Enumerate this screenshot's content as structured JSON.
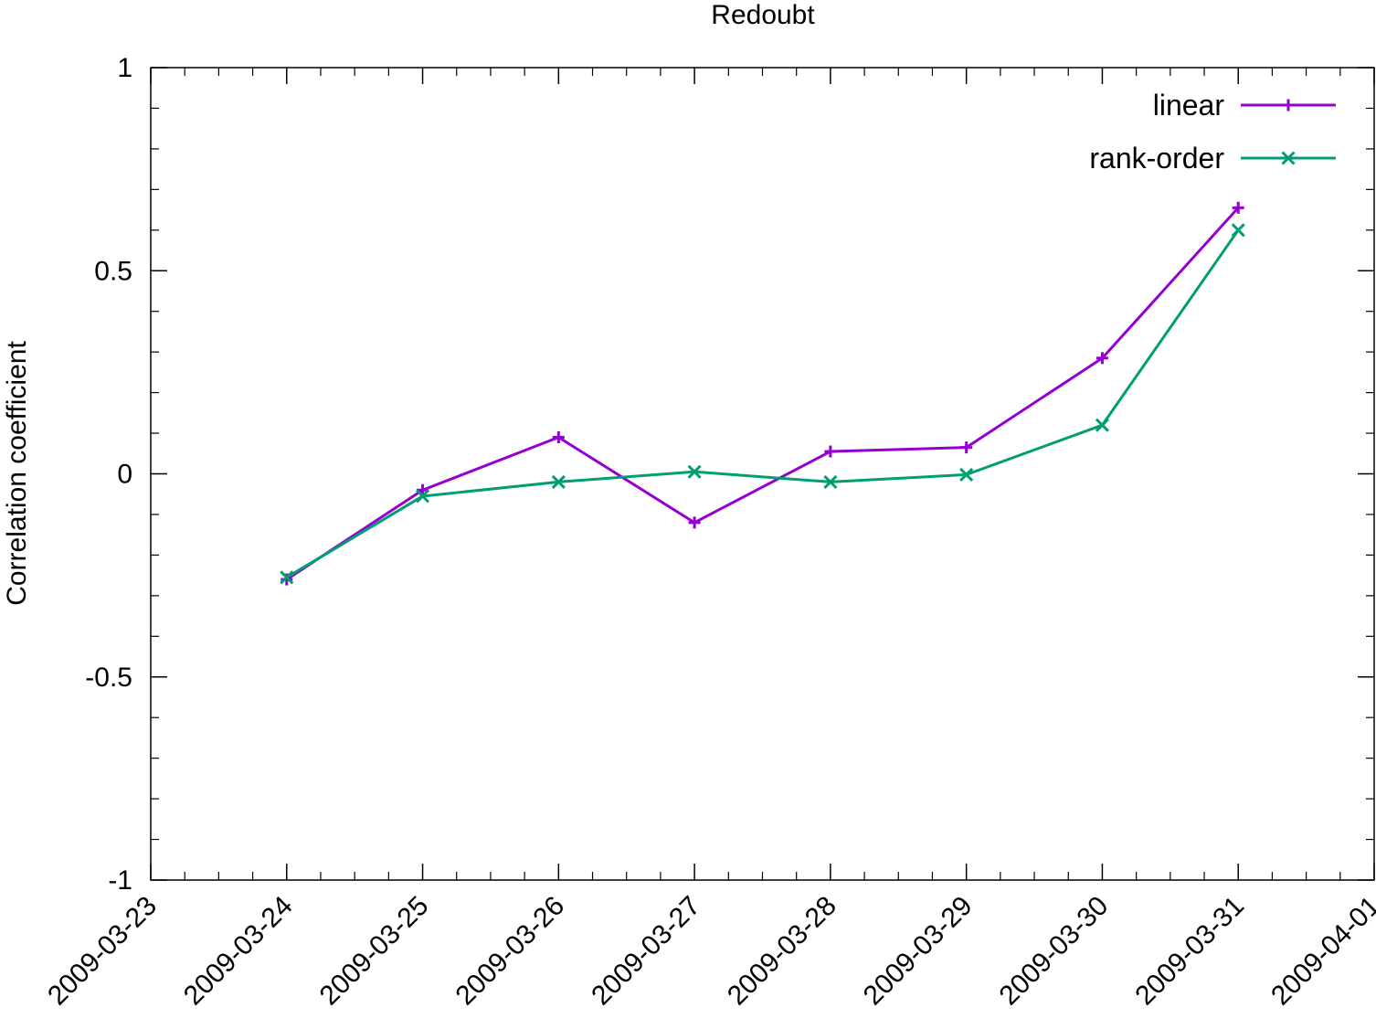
{
  "chart_data": {
    "type": "line",
    "title": "Redoubt",
    "xlabel": "",
    "ylabel": "Correlation coefficient",
    "xlim": [
      "2009-03-23",
      "2009-04-01"
    ],
    "ylim": [
      -1,
      1
    ],
    "x_ticks": [
      "2009-03-23",
      "2009-03-24",
      "2009-03-25",
      "2009-03-26",
      "2009-03-27",
      "2009-03-28",
      "2009-03-29",
      "2009-03-30",
      "2009-03-31",
      "2009-04-01"
    ],
    "y_ticks": [
      {
        "value": 1,
        "label": "1"
      },
      {
        "value": 0.5,
        "label": "0.5"
      },
      {
        "value": 0,
        "label": "0"
      },
      {
        "value": -0.5,
        "label": "-0.5"
      },
      {
        "value": -1,
        "label": "-1"
      }
    ],
    "x": [
      "2009-03-24",
      "2009-03-25",
      "2009-03-26",
      "2009-03-27",
      "2009-03-28",
      "2009-03-29",
      "2009-03-30",
      "2009-03-31"
    ],
    "series": [
      {
        "name": "linear",
        "color": "#9400d3",
        "marker": "plus",
        "values": [
          -0.26,
          -0.04,
          0.09,
          -0.12,
          0.055,
          0.065,
          0.285,
          0.655
        ]
      },
      {
        "name": "rank-order",
        "color": "#009e73",
        "marker": "cross",
        "values": [
          -0.255,
          -0.055,
          -0.02,
          0.005,
          -0.02,
          -0.002,
          0.12,
          0.6
        ]
      }
    ],
    "grid": false,
    "legend_position": "top-right"
  }
}
